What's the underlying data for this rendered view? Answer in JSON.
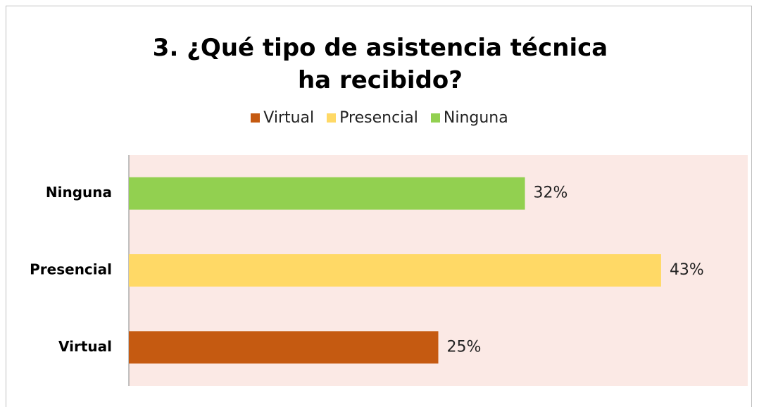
{
  "chart_data": {
    "type": "bar",
    "orientation": "horizontal",
    "title": "3.  ¿Qué tipo de asistencia técnica ha recibido?",
    "categories": [
      "Virtual",
      "Presencial",
      "Ninguna"
    ],
    "series": [
      {
        "name": "Virtual",
        "color": "#c55a11",
        "values": [
          25,
          null,
          null
        ],
        "value_labels": [
          "25%",
          null,
          null
        ]
      },
      {
        "name": "Presencial",
        "color": "#ffd966",
        "values": [
          null,
          43,
          null
        ],
        "value_labels": [
          null,
          "43%",
          null
        ]
      },
      {
        "name": "Ninguna",
        "color": "#92d050",
        "values": [
          null,
          null,
          32
        ],
        "value_labels": [
          null,
          null,
          "32%"
        ]
      }
    ],
    "xlim": [
      0,
      50
    ],
    "legend": "top",
    "plot_background": "#fbe9e5"
  }
}
